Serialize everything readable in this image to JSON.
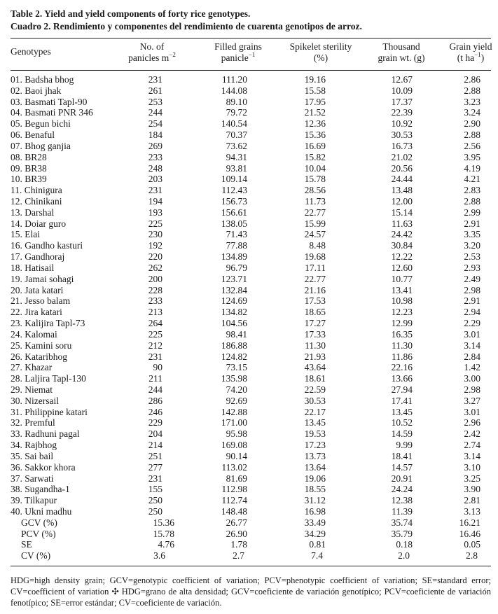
{
  "caption": {
    "en": "Table 2. Yield and yield components of forty rice genotypes.",
    "es": "Cuadro 2. Rendimiento y componentes del rendimiento de cuarenta genotipos de arroz."
  },
  "headers": {
    "genotypes": "Genotypes",
    "panicles_l1": "No. of",
    "panicles_l2": "panicles m",
    "panicles_sup": "−2",
    "filled_l1": "Filled grains",
    "filled_l2": "panicle",
    "filled_sup": "−1",
    "sterility_l1": "Spikelet sterility",
    "sterility_l2": "(%)",
    "thousand_l1": "Thousand",
    "thousand_l2": "grain wt. (g)",
    "yield_l1": "Grain yield",
    "yield_l2a": "(t ha",
    "yield_sup": "−1",
    "yield_l2b": ")"
  },
  "rows": [
    [
      "01. Badsha bhog",
      "231",
      "111.20",
      "19.16",
      "12.67",
      "2.86"
    ],
    [
      "02. Baoi jhak",
      "261",
      "144.08",
      "15.58",
      "10.09",
      "2.88"
    ],
    [
      "03. Basmati Tapl-90",
      "253",
      "89.10",
      "17.95",
      "17.37",
      "3.23"
    ],
    [
      "04. Basmati PNR 346",
      "244",
      "79.72",
      "21.52",
      "22.39",
      "3.24"
    ],
    [
      "05. Begun bichi",
      "254",
      "140.54",
      "12.36",
      "10.92",
      "2.90"
    ],
    [
      "06. Benaful",
      "184",
      "70.37",
      "15.36",
      "30.53",
      "2.88"
    ],
    [
      "07. Bhog ganjia",
      "269",
      "73.62",
      "16.69",
      "16.73",
      "2.56"
    ],
    [
      "08. BR28",
      "233",
      "94.31",
      "15.82",
      "21.02",
      "3.95"
    ],
    [
      "09. BR38",
      "248",
      "93.81",
      "10.04",
      "20.56",
      "4.19"
    ],
    [
      "10. BR39",
      "203",
      "109.14",
      "15.78",
      "24.44",
      "4.21"
    ],
    [
      "11. Chinigura",
      "231",
      "112.43",
      "28.56",
      "13.48",
      "2.83"
    ],
    [
      "12. Chinikani",
      "194",
      "156.73",
      "11.73",
      "12.00",
      "2.88"
    ],
    [
      "13. Darshal",
      "193",
      "156.61",
      "22.77",
      "15.14",
      "2.99"
    ],
    [
      "14. Doiar guro",
      "225",
      "138.05",
      "15.99",
      "11.63",
      "2.91"
    ],
    [
      "15. Elai",
      "230",
      "71.43",
      "24.57",
      "24.42",
      "3.35"
    ],
    [
      "16. Gandho kasturi",
      "192",
      "77.88",
      "8.48",
      "30.84",
      "3.20"
    ],
    [
      "17. Gandhoraj",
      "220",
      "134.89",
      "19.68",
      "12.22",
      "2.53"
    ],
    [
      "18. Hatisail",
      "262",
      "96.79",
      "17.11",
      "12.60",
      "2.93"
    ],
    [
      "19. Jamai sohagi",
      "200",
      "123.71",
      "22.77",
      "10.77",
      "2.49"
    ],
    [
      "20. Jata katari",
      "228",
      "132.84",
      "21.16",
      "13.41",
      "2.98"
    ],
    [
      "21. Jesso balam",
      "233",
      "124.69",
      "17.53",
      "10.98",
      "2.91"
    ],
    [
      "22. Jira katari",
      "213",
      "134.82",
      "18.65",
      "12.23",
      "2.94"
    ],
    [
      "23. Kalijira Tapl-73",
      "264",
      "104.56",
      "17.27",
      "12.99",
      "2.29"
    ],
    [
      "24. Kalomai",
      "225",
      "98.41",
      "17.33",
      "16.35",
      "3.01"
    ],
    [
      "25. Kamini soru",
      "212",
      "186.88",
      "11.30",
      "11.30",
      "3.14"
    ],
    [
      "26. Kataribhog",
      "231",
      "124.82",
      "21.93",
      "11.86",
      "2.84"
    ],
    [
      "27. Khazar",
      "90",
      "73.15",
      "43.64",
      "22.16",
      "1.42"
    ],
    [
      "28. Laljira Tapl-130",
      "211",
      "135.98",
      "18.61",
      "13.66",
      "3.00"
    ],
    [
      "29. Niemat",
      "244",
      "74.20",
      "22.59",
      "27.94",
      "2.98"
    ],
    [
      "30. Nizersail",
      "286",
      "92.69",
      "30.53",
      "17.41",
      "3.27"
    ],
    [
      "31. Philippine katari",
      "246",
      "142.88",
      "22.17",
      "13.45",
      "3.01"
    ],
    [
      "32. Premful",
      "229",
      "171.00",
      "13.45",
      "10.52",
      "2.96"
    ],
    [
      "33. Radhuni pagal",
      "204",
      "95.98",
      "19.53",
      "14.59",
      "2.42"
    ],
    [
      "34. Rajbhog",
      "214",
      "169.08",
      "17.23",
      "9.99",
      "2.74"
    ],
    [
      "35. Sai bail",
      "251",
      "90.14",
      "13.73",
      "18.41",
      "3.14"
    ],
    [
      "36. Sakkor khora",
      "277",
      "113.02",
      "13.64",
      "14.57",
      "3.10"
    ],
    [
      "37. Sarwati",
      "231",
      "81.69",
      "19.06",
      "20.91",
      "3.25"
    ],
    [
      "38. Sugandha-1",
      "155",
      "112.98",
      "18.55",
      "24.24",
      "3.90"
    ],
    [
      "39. Tilkapur",
      "250",
      "112.74",
      "31.12",
      "12.38",
      "2.81"
    ],
    [
      "40. Ukni madhu",
      "250",
      "148.48",
      "16.98",
      "11.39",
      "3.13"
    ]
  ],
  "stats": [
    [
      "GCV (%)",
      "15.36",
      "26.77",
      "33.49",
      "35.74",
      "16.21"
    ],
    [
      "PCV (%)",
      "15.78",
      "26.90",
      "34.29",
      "35.79",
      "16.46"
    ],
    [
      "SE",
      "4.76",
      "1.78",
      "0.81",
      "0.18",
      "0.05"
    ],
    [
      "CV (%)",
      "3.6",
      "2.7",
      "7.4",
      "2.0",
      "2.8"
    ]
  ],
  "footnote": "HDG=high density grain; GCV=genotypic coefficient of variation; PCV=phenotypic coefficient of variation; SE=standard error; CV=coefficient of variation ✣ HDG=grano de alta densidad; GCV=coeficiente de variación genotípico; PCV=coeficiente de variación fenotípico; SE=error estándar; CV=coeficiente de variación."
}
